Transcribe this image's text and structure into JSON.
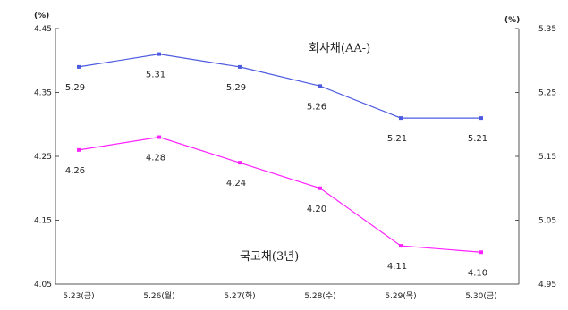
{
  "chart_data": {
    "type": "line",
    "categories": [
      "5.23(금)",
      "5.26(월)",
      "5.27(화)",
      "5.28(수)",
      "5.29(목)",
      "5.30(금)"
    ],
    "left_axis": {
      "unit": "(%)",
      "ylim": [
        4.05,
        4.45
      ],
      "ticks": [
        "4.45",
        "4.35",
        "4.25",
        "4.15",
        "4.05"
      ]
    },
    "right_axis": {
      "unit": "(%)",
      "ylim": [
        4.95,
        5.35
      ],
      "ticks": [
        "5.35",
        "5.25",
        "5.15",
        "5.05",
        "4.95"
      ]
    },
    "series": [
      {
        "name": "회사채(AA-)",
        "axis": "right",
        "color": "#4d5be0",
        "values": [
          5.29,
          5.31,
          5.29,
          5.26,
          5.21,
          5.21
        ],
        "labels": [
          "5.29",
          "5.31",
          "5.29",
          "5.26",
          "5.21",
          "5.21"
        ]
      },
      {
        "name": "국고채(3년)",
        "axis": "left",
        "color": "#ff22ff",
        "values": [
          4.26,
          4.28,
          4.24,
          4.2,
          4.11,
          4.1
        ],
        "labels": [
          "4.26",
          "4.28",
          "4.24",
          "4.20",
          "4.11",
          "4.10"
        ]
      }
    ],
    "grid": false
  }
}
